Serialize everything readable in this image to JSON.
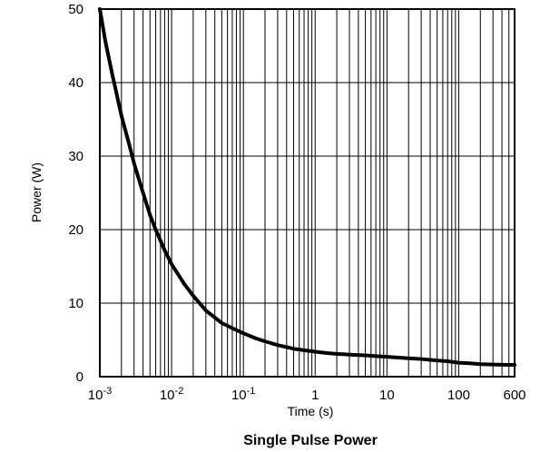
{
  "chart_data": {
    "type": "line",
    "title": "Single Pulse Power",
    "xlabel": "Time (s)",
    "ylabel": "Power  (W)",
    "x_scale": "log",
    "xlim": [
      0.001,
      600
    ],
    "ylim": [
      0,
      50
    ],
    "grid": true,
    "x_ticks": [
      {
        "value": 0.001,
        "base": "10",
        "exp": "-3"
      },
      {
        "value": 0.01,
        "base": "10",
        "exp": "-2"
      },
      {
        "value": 0.1,
        "base": "10",
        "exp": "-1"
      },
      {
        "value": 1,
        "label": "1"
      },
      {
        "value": 10,
        "label": "10"
      },
      {
        "value": 100,
        "label": "100"
      },
      {
        "value": 600,
        "label": "600"
      }
    ],
    "y_ticks": [
      0,
      10,
      20,
      30,
      40,
      50
    ],
    "line_color": "#000000",
    "series": [
      {
        "x": [
          0.001,
          0.0012,
          0.0015,
          0.002,
          0.0025,
          0.003,
          0.004,
          0.005,
          0.006,
          0.008,
          0.01,
          0.015,
          0.02,
          0.03,
          0.05,
          0.07,
          0.1,
          0.15,
          0.2,
          0.3,
          0.5,
          0.7,
          1,
          1.5,
          2,
          3,
          5,
          7,
          10,
          20,
          30,
          50,
          70,
          100,
          150,
          200,
          300,
          400,
          600
        ],
        "y": [
          50,
          45.5,
          41,
          35.5,
          32,
          29,
          25,
          22,
          20,
          17.2,
          15.3,
          12.6,
          11,
          9,
          7.3,
          6.6,
          5.9,
          5.2,
          4.8,
          4.3,
          3.8,
          3.6,
          3.4,
          3.2,
          3.1,
          3.0,
          2.9,
          2.8,
          2.7,
          2.5,
          2.4,
          2.2,
          2.1,
          1.9,
          1.8,
          1.7,
          1.65,
          1.62,
          1.6
        ]
      }
    ]
  }
}
